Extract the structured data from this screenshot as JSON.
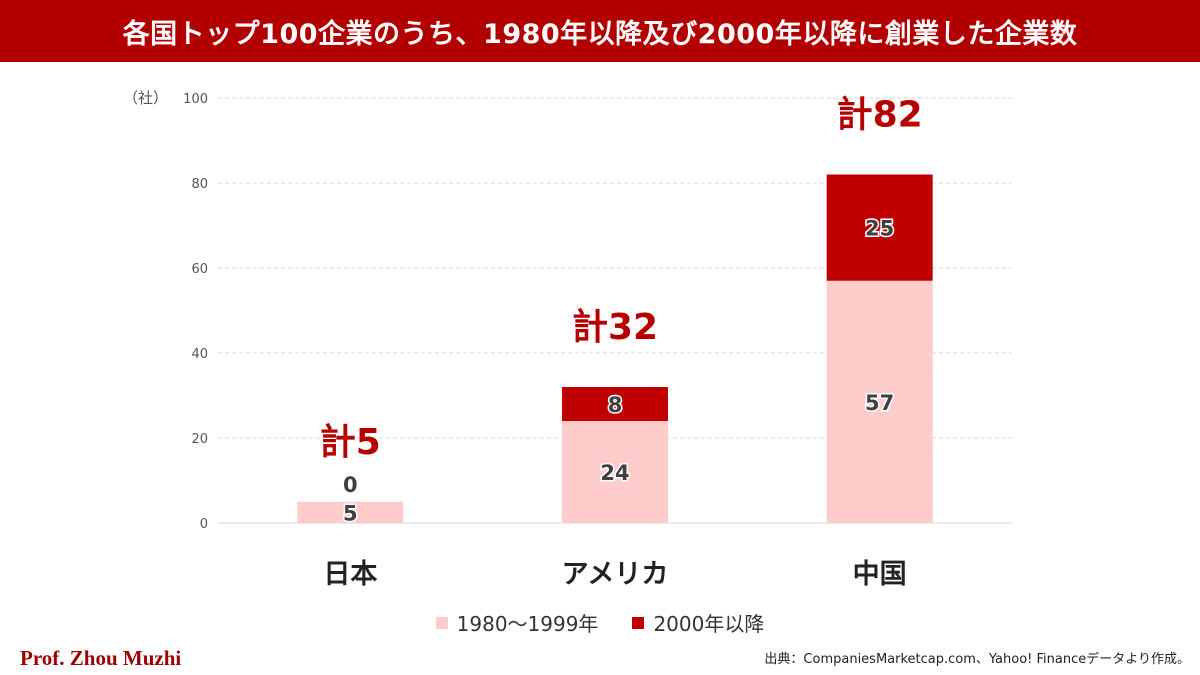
{
  "title": "各国トップ100企業のうち、1980年以降及び2000年以降に創業した企業数",
  "author": "Prof. Zhou Muzhi",
  "source": "出典：CompaniesMarketcap.com、Yahoo! Financeデータより作成。",
  "chart_data": {
    "type": "bar",
    "stacked": true,
    "y_unit_label": "（社）",
    "ylim": [
      0,
      100
    ],
    "yticks": [
      0,
      20,
      40,
      60,
      80,
      100
    ],
    "grid": true,
    "legend_position": "bottom",
    "categories": [
      "日本",
      "アメリカ",
      "中国"
    ],
    "series": [
      {
        "name": "1980〜1999年",
        "values": [
          5,
          24,
          57
        ],
        "color": "#ffcccc"
      },
      {
        "name": "2000年以降",
        "values": [
          0,
          8,
          25
        ],
        "color": "#c00000"
      }
    ],
    "totals": [
      "計5",
      "計32",
      "計82"
    ],
    "total_color": "#b50000"
  }
}
